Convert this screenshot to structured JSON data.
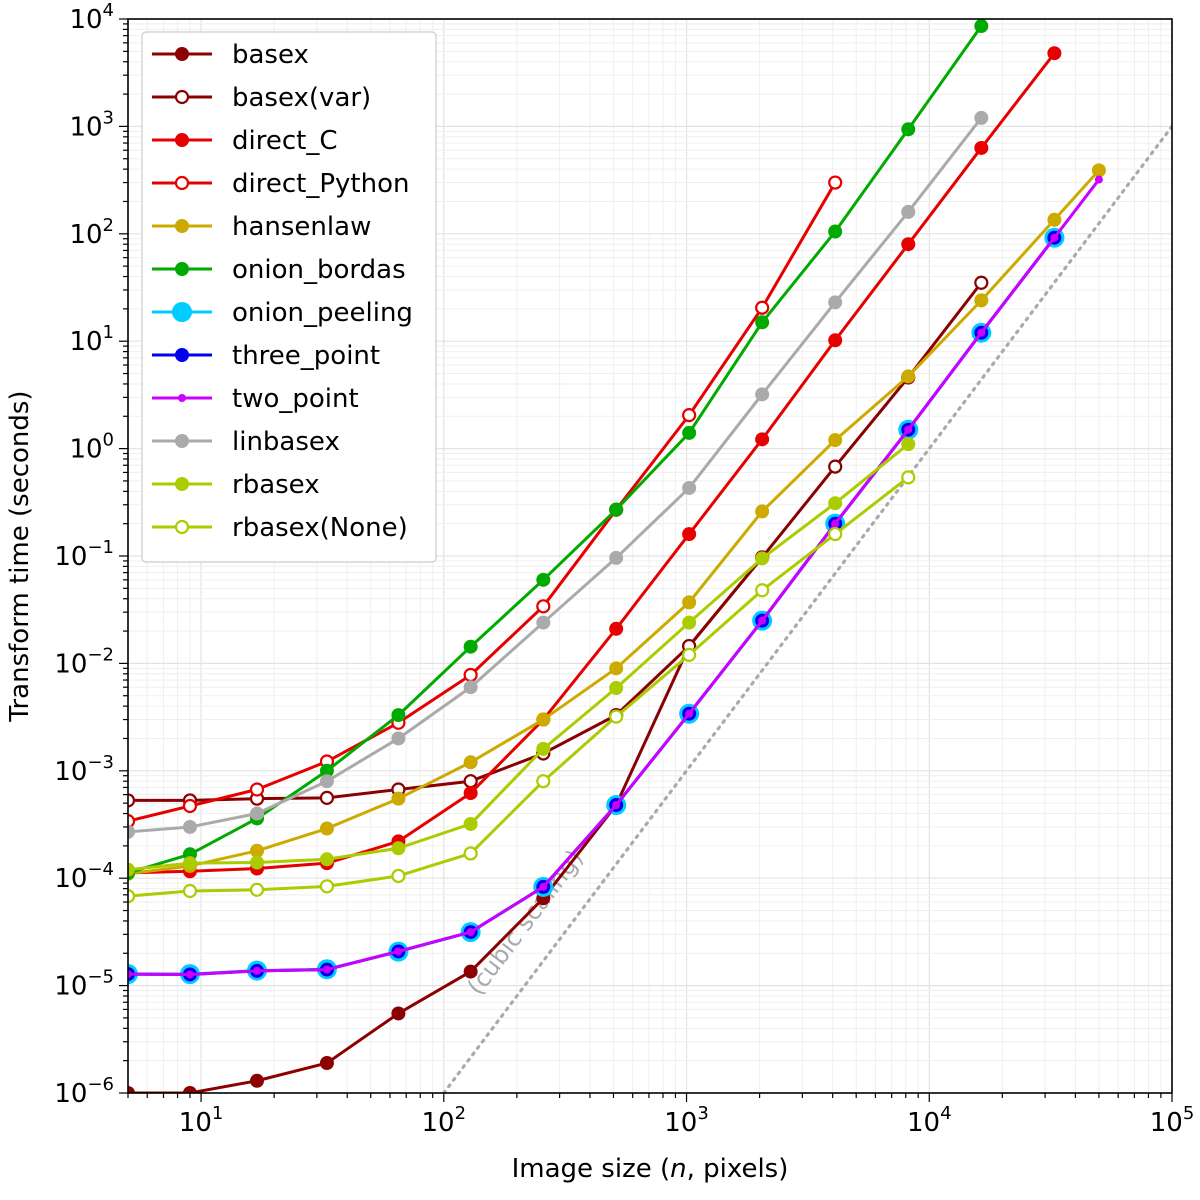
{
  "chart_data": {
    "type": "line",
    "xlabel_parts": [
      "Image size (",
      "n",
      ", pixels)"
    ],
    "ylabel": "Transform time (seconds)",
    "xscale": "log",
    "yscale": "log",
    "xlim": [
      5,
      100000
    ],
    "ylim": [
      1e-06,
      10000
    ],
    "x_tick_labels": [
      {
        "value": 10,
        "base": "10",
        "exp": "1"
      },
      {
        "value": 100,
        "base": "10",
        "exp": "2"
      },
      {
        "value": 1000,
        "base": "10",
        "exp": "3"
      },
      {
        "value": 10000,
        "base": "10",
        "exp": "4"
      },
      {
        "value": 100000,
        "base": "10",
        "exp": "5"
      }
    ],
    "y_tick_labels": [
      {
        "value": 1e-06,
        "base": "10",
        "exp": "−6"
      },
      {
        "value": 1e-05,
        "base": "10",
        "exp": "−5"
      },
      {
        "value": 0.0001,
        "base": "10",
        "exp": "−4"
      },
      {
        "value": 0.001,
        "base": "10",
        "exp": "−3"
      },
      {
        "value": 0.01,
        "base": "10",
        "exp": "−2"
      },
      {
        "value": 0.1,
        "base": "10",
        "exp": "−1"
      },
      {
        "value": 1,
        "base": "10",
        "exp": "0"
      },
      {
        "value": 10,
        "base": "10",
        "exp": "1"
      },
      {
        "value": 100,
        "base": "10",
        "exp": "2"
      },
      {
        "value": 1000,
        "base": "10",
        "exp": "3"
      },
      {
        "value": 10000,
        "base": "10",
        "exp": "4"
      }
    ],
    "grid": true,
    "legend_position": "top-left",
    "reference_line": {
      "label": "(cubic scaling)",
      "style": "dotted",
      "color": "#aaaaaa",
      "x": [
        100,
        100000
      ],
      "y": [
        1e-06,
        1000
      ]
    },
    "series": [
      {
        "name": "basex",
        "color": "#8b0000",
        "marker": "filled",
        "x": [
          5,
          9,
          17,
          33,
          65,
          129,
          257,
          513,
          1025,
          2049
        ],
        "y": [
          1e-06,
          1e-06,
          1.3e-06,
          1.9e-06,
          5.5e-06,
          1.35e-05,
          6.5e-05,
          0.00048,
          0.0145,
          0.097
        ]
      },
      {
        "name": "basex(var)",
        "color": "#8b0000",
        "marker": "open",
        "x": [
          5,
          9,
          17,
          33,
          65,
          129,
          257,
          513,
          1025,
          2049,
          4097,
          8193,
          16385
        ],
        "y": [
          0.00053,
          0.00053,
          0.00055,
          0.00056,
          0.00067,
          0.0008,
          0.00145,
          0.0033,
          0.0145,
          0.097,
          0.68,
          4.6,
          35
        ]
      },
      {
        "name": "direct_C",
        "color": "#e60000",
        "marker": "filled",
        "x": [
          5,
          9,
          17,
          33,
          65,
          129,
          257,
          513,
          1025,
          2049,
          4097,
          8193,
          16385,
          32769
        ],
        "y": [
          0.000112,
          0.000116,
          0.000123,
          0.000138,
          0.00022,
          0.00062,
          0.003,
          0.021,
          0.16,
          1.22,
          10.2,
          80,
          630,
          4800
        ]
      },
      {
        "name": "direct_Python",
        "color": "#e60000",
        "marker": "open",
        "x": [
          5,
          9,
          17,
          33,
          65,
          129,
          257,
          513,
          1025,
          2049,
          4097
        ],
        "y": [
          0.00034,
          0.00047,
          0.00067,
          0.00122,
          0.0028,
          0.0078,
          0.034,
          0.27,
          2.05,
          20.5,
          300
        ]
      },
      {
        "name": "hansenlaw",
        "color": "#ccaa00",
        "marker": "filled",
        "x": [
          5,
          9,
          17,
          33,
          65,
          129,
          257,
          513,
          1025,
          2049,
          4097,
          8193,
          16385,
          32769,
          50001
        ],
        "y": [
          0.00011,
          0.00013,
          0.00018,
          0.00029,
          0.00055,
          0.0012,
          0.003,
          0.009,
          0.037,
          0.26,
          1.2,
          4.7,
          24,
          135,
          390
        ]
      },
      {
        "name": "onion_bordas",
        "color": "#00aa00",
        "marker": "filled",
        "x": [
          5,
          9,
          17,
          33,
          65,
          129,
          257,
          513,
          1025,
          2049,
          4097,
          8193,
          16385
        ],
        "y": [
          0.000112,
          0.000167,
          0.00036,
          0.001,
          0.0033,
          0.0143,
          0.06,
          0.27,
          1.4,
          15,
          105,
          940,
          8600
        ]
      },
      {
        "name": "onion_peeling",
        "color": "#00ccff",
        "marker": "big",
        "x": [
          5,
          9,
          17,
          33,
          65,
          129,
          257,
          513,
          1025,
          2049,
          4097,
          8193,
          16385,
          32769
        ],
        "y": [
          1.28e-05,
          1.28e-05,
          1.38e-05,
          1.42e-05,
          2.07e-05,
          3.15e-05,
          8.3e-05,
          0.00048,
          0.0034,
          0.025,
          0.2,
          1.5,
          12,
          92
        ]
      },
      {
        "name": "three_point",
        "color": "#0000ee",
        "marker": "filled",
        "x": [
          5,
          9,
          17,
          33,
          65,
          129,
          257,
          513,
          1025,
          2049,
          4097,
          8193,
          16385,
          32769
        ],
        "y": [
          1.28e-05,
          1.27e-05,
          1.37e-05,
          1.41e-05,
          2.08e-05,
          3.15e-05,
          8.3e-05,
          0.00048,
          0.0034,
          0.025,
          0.2,
          1.5,
          12,
          92
        ]
      },
      {
        "name": "two_point",
        "color": "#cc00ff",
        "marker": "small",
        "x": [
          5,
          9,
          17,
          33,
          65,
          129,
          257,
          513,
          1025,
          2049,
          4097,
          8193,
          16385,
          32769,
          50001
        ],
        "y": [
          1.28e-05,
          1.27e-05,
          1.37e-05,
          1.41e-05,
          2.08e-05,
          3.15e-05,
          8.3e-05,
          0.00048,
          0.0034,
          0.025,
          0.2,
          1.5,
          12,
          92,
          320
        ]
      },
      {
        "name": "linbasex",
        "color": "#aaaaaa",
        "marker": "filled",
        "x": [
          5,
          9,
          17,
          33,
          65,
          129,
          257,
          513,
          1025,
          2049,
          4097,
          8193,
          16385
        ],
        "y": [
          0.00027,
          0.0003,
          0.0004,
          0.0008,
          0.002,
          0.006,
          0.024,
          0.096,
          0.43,
          3.2,
          23,
          160,
          1200
        ]
      },
      {
        "name": "rbasex",
        "color": "#aacc00",
        "marker": "filled",
        "x": [
          5,
          9,
          17,
          33,
          65,
          129,
          257,
          513,
          1025,
          2049,
          4097,
          8193
        ],
        "y": [
          0.00012,
          0.000138,
          0.00014,
          0.00015,
          0.00019,
          0.00032,
          0.0016,
          0.0059,
          0.024,
          0.095,
          0.31,
          1.1
        ]
      },
      {
        "name": "rbasex(None)",
        "color": "#aacc00",
        "marker": "open",
        "x": [
          5,
          9,
          17,
          33,
          65,
          129,
          257,
          513,
          1025,
          2049,
          4097,
          8193
        ],
        "y": [
          6.8e-05,
          7.6e-05,
          7.8e-05,
          8.4e-05,
          0.000105,
          0.00017,
          0.0008,
          0.0032,
          0.012,
          0.048,
          0.16,
          0.54
        ]
      }
    ]
  }
}
